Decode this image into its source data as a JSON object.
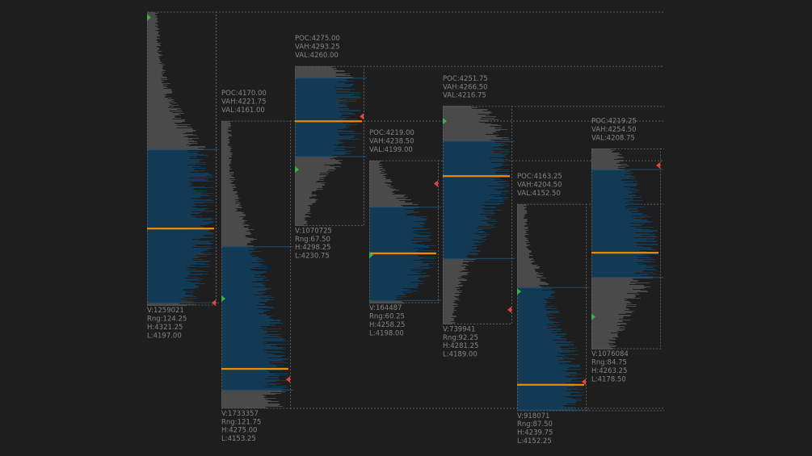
{
  "chart_data": {
    "type": "volume-profile",
    "title": "",
    "price_range": [
      4150,
      4325
    ],
    "colors": {
      "background": "#1e1e1e",
      "outside_value_area": "#4a4a4a",
      "value_area": "#133a54",
      "poc": "#f28a00",
      "open_marker": "#3fb04a",
      "close_marker": "#e8413c",
      "text": "#858585",
      "border": "#5c5c5c"
    },
    "profiles": [
      {
        "poc": 4229.5,
        "vah": 4263.0,
        "val": 4198.0,
        "high": 4321.25,
        "low": 4197.0,
        "open": 4319.0,
        "close": 4198.0,
        "show_poc_label": false,
        "labels": {
          "poc": "",
          "vah": "",
          "val": "",
          "v": "V:1259021",
          "rng": "Rng:124.25",
          "h": "H:4321.25",
          "l": "L:4197.00"
        }
      },
      {
        "poc": 4170.0,
        "vah": 4221.75,
        "val": 4161.0,
        "high": 4275.0,
        "low": 4153.25,
        "open": 4199.75,
        "close": 4165.5,
        "show_poc_label": true,
        "labels": {
          "poc": "POC:4170.00",
          "vah": "VAH:4221.75",
          "val": "VAL:4161.00",
          "v": "V:1733357",
          "rng": "Rng:121.75",
          "h": "H:4275.00",
          "l": "L:4153.25"
        }
      },
      {
        "poc": 4275.0,
        "vah": 4293.25,
        "val": 4260.0,
        "high": 4298.25,
        "low": 4230.75,
        "open": 4254.5,
        "close": 4277.0,
        "show_poc_label": true,
        "labels": {
          "poc": "POC:4275.00",
          "vah": "VAH:4293.25",
          "val": "VAL:4260.00",
          "v": "V:1070725",
          "rng": "Rng:67.50",
          "h": "H:4298.25",
          "l": "L:4230.75"
        }
      },
      {
        "poc": 4219.0,
        "vah": 4238.5,
        "val": 4199.0,
        "high": 4258.25,
        "low": 4198.0,
        "open": 4218.25,
        "close": 4248.5,
        "show_poc_label": true,
        "labels": {
          "poc": "POC:4219.00",
          "vah": "VAH:4238.50",
          "val": "VAL:4199.00",
          "v": "V:164487",
          "rng": "Rng:60.25",
          "h": "H:4258.25",
          "l": "L:4198.00"
        }
      },
      {
        "poc": 4251.75,
        "vah": 4266.5,
        "val": 4216.75,
        "high": 4281.25,
        "low": 4189.0,
        "open": 4275.0,
        "close": 4195.0,
        "show_poc_label": true,
        "labels": {
          "poc": "POC:4251.75",
          "vah": "VAH:4266.50",
          "val": "VAL:4216.75",
          "v": "V:739941",
          "rng": "Rng:92.25",
          "h": "H:4281.25",
          "l": "L:4189.00"
        }
      },
      {
        "poc": 4163.25,
        "vah": 4204.5,
        "val": 4152.5,
        "high": 4239.75,
        "low": 4152.25,
        "open": 4202.75,
        "close": 4164.5,
        "show_poc_label": true,
        "labels": {
          "poc": "POC:4163.25",
          "vah": "VAH:4204.50",
          "val": "VAL:4152.50",
          "v": "V:918071",
          "rng": "Rng:87.50",
          "h": "H:4239.75",
          "l": "L:4152.25"
        }
      },
      {
        "poc": 4219.25,
        "vah": 4254.5,
        "val": 4208.75,
        "high": 4263.25,
        "low": 4178.5,
        "open": 4192.0,
        "close": 4256.25,
        "show_poc_label": true,
        "labels": {
          "poc": "POC:4219.25",
          "vah": "VAH:4254.50",
          "val": "VAL:4208.75",
          "v": "V:1076084",
          "rng": "Rng:84.75",
          "h": "H:4263.25",
          "l": "L:4178.50"
        }
      }
    ]
  }
}
